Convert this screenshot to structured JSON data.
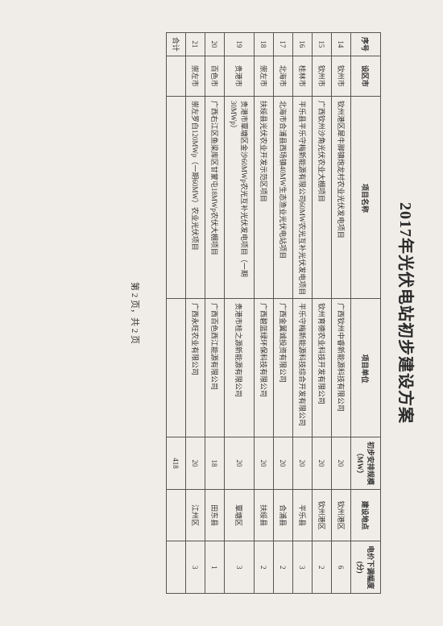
{
  "title": "2017年光伏电站初步建设方案",
  "headers": {
    "seq": "序号",
    "city": "设区市",
    "project": "项目名称",
    "unit": "项目单位",
    "scale": "初步安排规模（MW）",
    "location": "建设地点",
    "adjust": "电价下调幅度(分)"
  },
  "rows": [
    {
      "seq": "14",
      "city": "钦州市",
      "project": "钦州港区犀牛脚镇炮龙村农业光伏发电项目",
      "unit": "广西钦州中睿新能源科技有限公司",
      "scale": "20",
      "location": "钦州港区",
      "adjust": "6"
    },
    {
      "seq": "15",
      "city": "钦州市",
      "project": "广西钦州沙角光伏农业大棚项目",
      "unit": "钦州育德农业科技开发有限公司",
      "scale": "20",
      "location": "钦州港区",
      "adjust": "2"
    },
    {
      "seq": "16",
      "city": "桂林市",
      "project": "平乐县平乐守梅新能源有限公司60MW农光互补光伏发电项目",
      "unit": "平乐守梅新能源科技综合开发有限公司",
      "scale": "20",
      "location": "平乐县",
      "adjust": "3"
    },
    {
      "seq": "17",
      "city": "北海市",
      "project": "北海市合浦县西场镇40MW生态渔业光伏电站项目",
      "unit": "广西金翼诚投资有限公司",
      "scale": "20",
      "location": "合浦县",
      "adjust": "2"
    },
    {
      "seq": "18",
      "city": "崇左市",
      "project": "扶绥县光伏农业开发示范区项目",
      "unit": "广西碧蓝绿环保科技有限公司",
      "scale": "20",
      "location": "扶绥县",
      "adjust": "2"
    },
    {
      "seq": "19",
      "city": "贵港市",
      "project": "贵港市覃塘区金沙60MWp农光互补光伏发电项目（一期30MWp）",
      "unit": "贵港市桂之源新能源有限公司",
      "scale": "20",
      "location": "覃塘区",
      "adjust": "3"
    },
    {
      "seq": "20",
      "city": "百色市",
      "project": "广西右江区鱼梁库区甘蒙屯18MWp农伏大棚项目",
      "unit": "广西百色西江能源有限公司",
      "scale": "18",
      "location": "田东县",
      "adjust": "1"
    },
    {
      "seq": "21",
      "city": "崇左市",
      "project": "崇左罗白120MWp（一期60MW）农业光伏项目",
      "unit": "广西永旺农业有限公司",
      "scale": "20",
      "location": "江州区",
      "adjust": "3"
    }
  ],
  "total": {
    "label": "合计",
    "scale": "418"
  },
  "pager": "第 2 页，共 2 页"
}
